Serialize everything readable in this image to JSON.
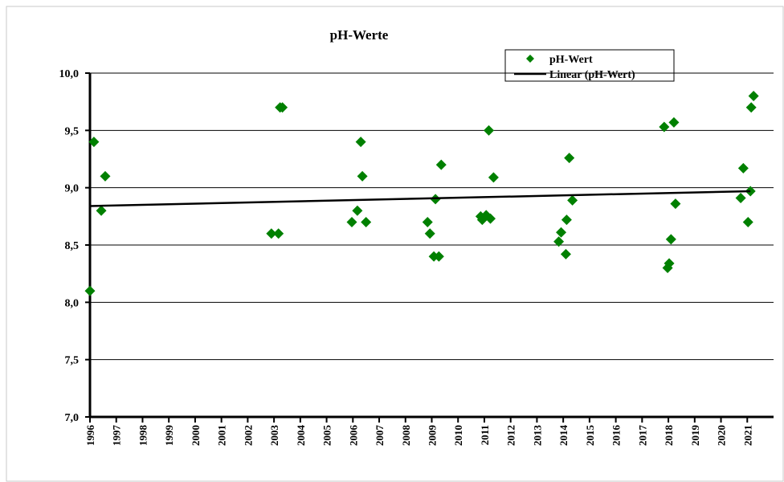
{
  "chart_data": {
    "type": "scatter",
    "title": "pH-Werte",
    "xlim": [
      1996,
      2022
    ],
    "ylim": [
      7.0,
      10.0
    ],
    "xticks": [
      1996,
      1997,
      1998,
      1999,
      2000,
      2001,
      2002,
      2003,
      2004,
      2005,
      2006,
      2007,
      2008,
      2009,
      2010,
      2011,
      2012,
      2013,
      2014,
      2015,
      2016,
      2017,
      2018,
      2019,
      2020,
      2021
    ],
    "yticks": [
      {
        "value": 7.0,
        "label": "7,0"
      },
      {
        "value": 7.5,
        "label": "7,5"
      },
      {
        "value": 8.0,
        "label": "8,0"
      },
      {
        "value": 8.5,
        "label": "8,5"
      },
      {
        "value": 9.0,
        "label": "9,0"
      },
      {
        "value": 9.5,
        "label": "9,5"
      },
      {
        "value": 10.0,
        "label": "10,0"
      }
    ],
    "grid": true,
    "legend": "top-right",
    "series": [
      {
        "name": "pH-Wert",
        "type": "scatter",
        "color": "#008000",
        "x": [
          1996.0,
          1996.15,
          1996.43,
          1996.58,
          2002.9,
          2003.17,
          2003.23,
          2003.32,
          2005.96,
          2006.17,
          2006.3,
          2006.36,
          2006.5,
          2008.84,
          2008.93,
          2009.08,
          2009.14,
          2009.27,
          2009.36,
          2010.86,
          2010.92,
          2011.07,
          2011.17,
          2011.23,
          2011.35,
          2013.83,
          2013.92,
          2014.1,
          2014.13,
          2014.23,
          2014.35,
          2017.84,
          2017.97,
          2018.03,
          2018.1,
          2018.21,
          2018.27,
          2020.75,
          2020.85,
          2021.03,
          2021.12,
          2021.15,
          2021.24
        ],
        "values": [
          8.1,
          9.4,
          8.8,
          9.1,
          8.6,
          8.6,
          9.7,
          9.7,
          8.7,
          8.8,
          9.4,
          9.1,
          8.7,
          8.7,
          8.6,
          8.4,
          8.9,
          8.4,
          9.2,
          8.75,
          8.72,
          8.76,
          9.5,
          8.73,
          9.09,
          8.53,
          8.61,
          8.42,
          8.72,
          9.26,
          8.89,
          9.53,
          8.3,
          8.34,
          8.55,
          9.57,
          8.86,
          8.91,
          9.17,
          8.7,
          8.97,
          9.7,
          9.8
        ]
      },
      {
        "name": "Linear (pH-Wert)",
        "type": "line",
        "color": "#000000",
        "x": [
          1996.0,
          2021.12
        ],
        "values": [
          8.84,
          8.97
        ]
      }
    ]
  }
}
